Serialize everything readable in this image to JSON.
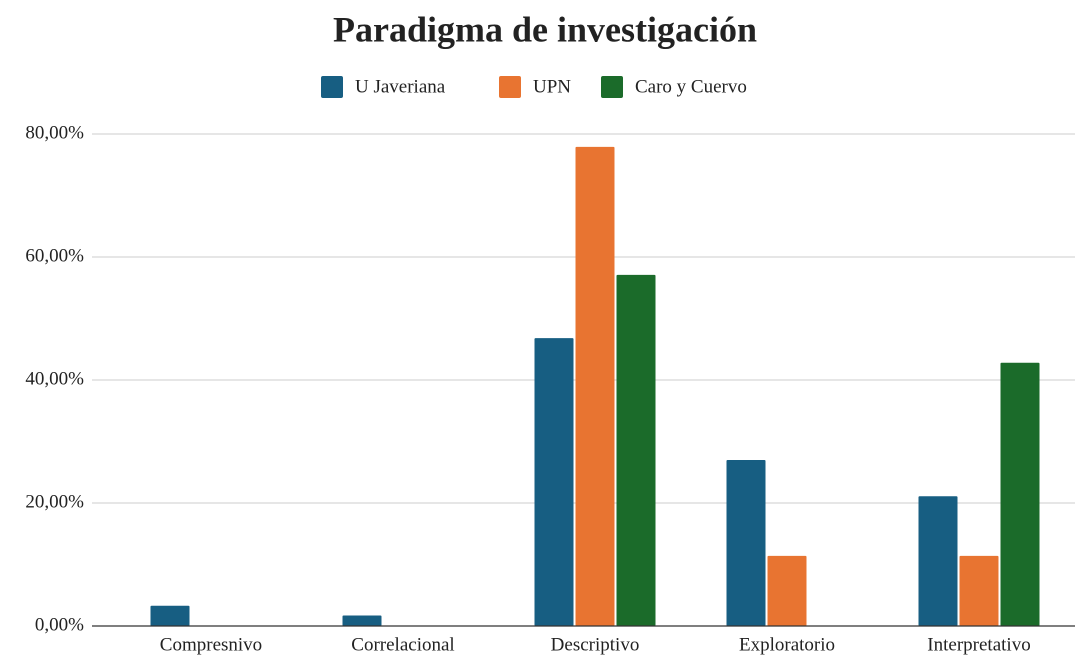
{
  "chart_data": {
    "type": "bar",
    "title": "Paradigma de investigación",
    "categories": [
      "Compresnivo",
      "Correlacional",
      "Descriptivo",
      "Exploratorio",
      "Interpretativo"
    ],
    "series": [
      {
        "name": "U Javeriana",
        "color": "#175e82",
        "values": [
          3.3,
          1.7,
          46.8,
          27,
          21.1
        ]
      },
      {
        "name": "UPN",
        "color": "#e87431",
        "values": [
          0,
          0,
          77.9,
          11.4,
          11.4
        ]
      },
      {
        "name": "Caro y Cuervo",
        "color": "#1b6b2a",
        "values": [
          0,
          0,
          57.1,
          0,
          42.8
        ]
      }
    ],
    "ylim": [
      0,
      80
    ],
    "yticks": [
      {
        "value": 0,
        "label": "0,00%"
      },
      {
        "value": 20,
        "label": "20,00%"
      },
      {
        "value": 40,
        "label": "40,00%"
      },
      {
        "value": 60,
        "label": "60,00%"
      },
      {
        "value": 80,
        "label": "80,00%"
      }
    ],
    "grid": true,
    "legend": "top"
  }
}
